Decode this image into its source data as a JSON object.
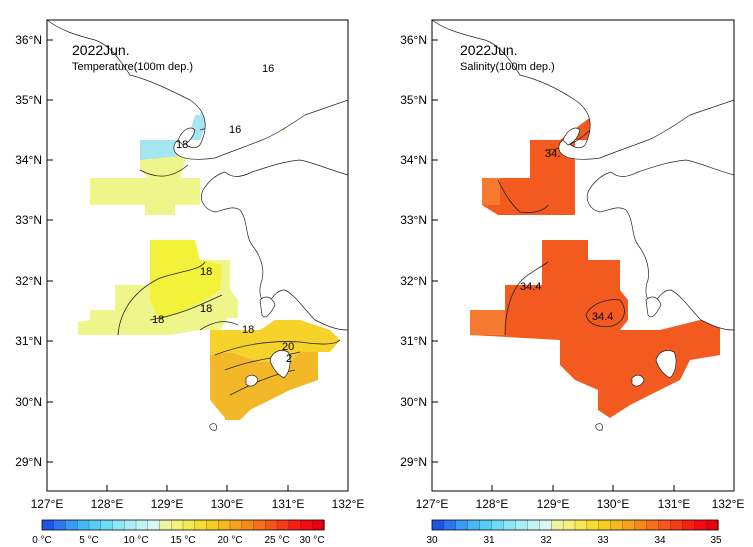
{
  "panels": [
    {
      "title": "2022Jun.",
      "subtitle": "Temperature(100m dep.)",
      "contour_labels": [
        "16",
        "16",
        "18",
        "18",
        "18",
        "18",
        "20",
        "2",
        "18"
      ]
    },
    {
      "title": "2022Jun.",
      "subtitle": "Salinity(100m dep.)",
      "contour_labels": [
        "34.",
        "34.4",
        "34.4"
      ]
    }
  ],
  "lon_labels": [
    "127°E",
    "128°E",
    "129°E",
    "130°E",
    "131°E",
    "132°E"
  ],
  "lat_labels": [
    "36°N",
    "35°N",
    "34°N",
    "33°N",
    "32°N",
    "31°N",
    "30°N",
    "29°N"
  ],
  "temp_colorbar": {
    "labels": [
      "0 °C",
      "5 °C",
      "10 °C",
      "15 °C",
      "20 °C",
      "25 °C",
      "30 °C"
    ],
    "colors": [
      "#1a55e6",
      "#2a78f0",
      "#3a9af5",
      "#45b8f5",
      "#55cdf5",
      "#6fdcf5",
      "#8ce6f5",
      "#a8eef5",
      "#c2f4f5",
      "#d8f8f5",
      "#eef5a0",
      "#f5f27a",
      "#f5e850",
      "#f5dc30",
      "#f5cc20",
      "#f5b81e",
      "#f5a21c",
      "#f58a1a",
      "#f57018",
      "#f55516",
      "#f53a14",
      "#f52012",
      "#f50a10",
      "#e8000e"
    ]
  },
  "sal_colorbar": {
    "labels": [
      "30",
      "31",
      "32",
      "33",
      "34",
      "35"
    ],
    "colors": [
      "#1a55e6",
      "#2a78f0",
      "#3a9af5",
      "#45b8f5",
      "#55cdf5",
      "#6fdcf5",
      "#8ce6f5",
      "#a8eef5",
      "#c2f4f5",
      "#d8f8f5",
      "#eef5a0",
      "#f5f27a",
      "#f5e850",
      "#f5dc30",
      "#f5cc20",
      "#f5b81e",
      "#f5a21c",
      "#f58a1a",
      "#f57018",
      "#f55516",
      "#f53a14",
      "#f52012",
      "#f50a10",
      "#e8000e"
    ]
  }
}
